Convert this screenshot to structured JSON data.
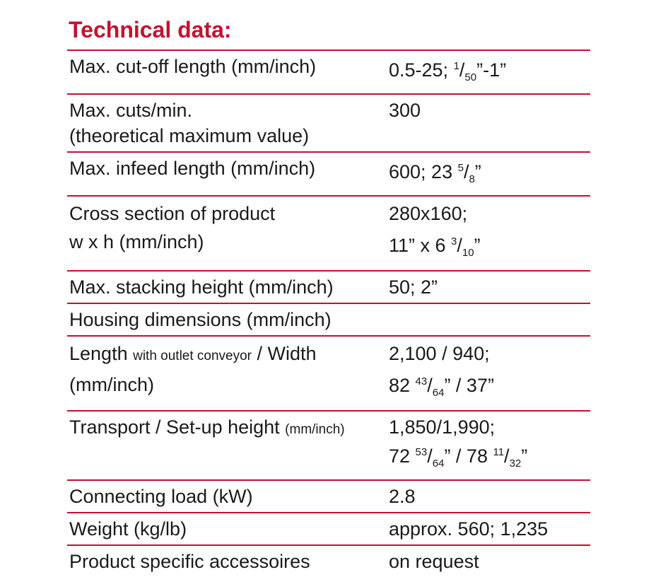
{
  "title": "Technical data:",
  "rows": [
    {
      "label": [
        [
          "Max. cut-off length (mm/inch)"
        ]
      ],
      "value": [
        [
          "0.5-25; ",
          {
            "text": "1",
            "form": "sup"
          },
          "/",
          {
            "text": "50",
            "form": "sub"
          },
          "”-1”"
        ]
      ]
    },
    {
      "label": [
        [
          "Max. cuts/min."
        ],
        [
          "(theoretical maximum value)"
        ]
      ],
      "value": [
        [
          "300"
        ]
      ]
    },
    {
      "label": [
        [
          "Max. infeed length (mm/inch)"
        ]
      ],
      "value": [
        [
          "600; 23 ",
          {
            "text": "5",
            "form": "sup"
          },
          "/",
          {
            "text": "8",
            "form": "sub"
          },
          "”"
        ]
      ]
    },
    {
      "label": [
        [
          "Cross section of product"
        ],
        [
          "w x h (mm/inch)"
        ]
      ],
      "value": [
        [
          "280x160;"
        ],
        [
          "11” x 6 ",
          {
            "text": "3",
            "form": "sup"
          },
          "/",
          {
            "text": "10",
            "form": "sub"
          },
          "”"
        ]
      ]
    },
    {
      "label": [
        [
          "Max. stacking height (mm/inch)"
        ]
      ],
      "value": [
        [
          "50; 2”"
        ]
      ]
    },
    {
      "label": [
        [
          "Housing dimensions (mm/inch)"
        ]
      ],
      "value": []
    },
    {
      "label": [
        [
          "Length ",
          {
            "text": "with outlet conveyor",
            "form": "small"
          },
          " / Width"
        ],
        [
          "(mm/inch)"
        ]
      ],
      "value": [
        [
          "2,100 / 940;"
        ],
        [
          "82 ",
          {
            "text": "43",
            "form": "sup"
          },
          "/",
          {
            "text": "64",
            "form": "sub"
          },
          "” / 37”"
        ]
      ]
    },
    {
      "label": [
        [
          "Transport / Set-up height ",
          {
            "text": "(mm/inch)",
            "form": "small"
          }
        ]
      ],
      "value": [
        [
          "1,850/1,990;"
        ],
        [
          "72 ",
          {
            "text": "53",
            "form": "sup"
          },
          "/",
          {
            "text": "64",
            "form": "sub"
          },
          "” / 78 ",
          {
            "text": "11",
            "form": "sup"
          },
          "/",
          {
            "text": "32",
            "form": "sub"
          },
          "”"
        ]
      ]
    },
    {
      "label": [
        [
          "Connecting load (kW)"
        ]
      ],
      "value": [
        [
          "2.8"
        ]
      ]
    },
    {
      "label": [
        [
          "Weight (kg/lb)"
        ]
      ],
      "value": [
        [
          "approx. 560; 1,235"
        ]
      ]
    },
    {
      "label": [
        [
          "Product specific accessoires"
        ]
      ],
      "value": [
        [
          "on request"
        ]
      ]
    }
  ]
}
